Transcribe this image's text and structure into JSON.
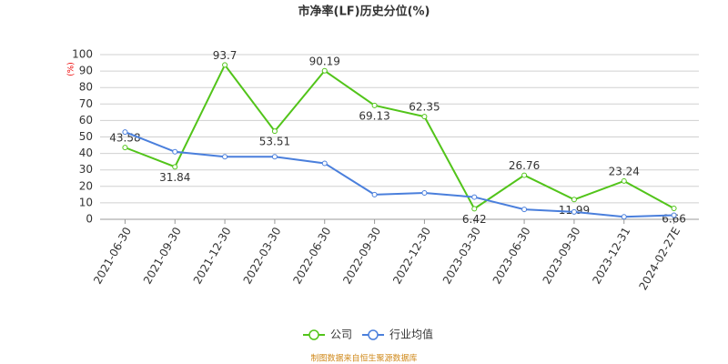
{
  "chart_data": {
    "type": "line",
    "title": "市净率(LF)历史分位(%)",
    "y_label": "(%)",
    "categories": [
      "2021-06-30",
      "2021-09-30",
      "2021-12-30",
      "2022-03-30",
      "2022-06-30",
      "2022-09-30",
      "2022-12-30",
      "2023-03-30",
      "2023-06-30",
      "2023-09-30",
      "2023-12-31",
      "2024-02-27E"
    ],
    "series": [
      {
        "name": "公司",
        "color": "#52c41a",
        "values": [
          43.58,
          31.84,
          93.7,
          53.51,
          90.19,
          69.13,
          62.35,
          6.42,
          26.76,
          11.99,
          23.24,
          6.66
        ],
        "show_labels": true
      },
      {
        "name": "行业均值",
        "color": "#4a7fdc",
        "values": [
          53,
          41,
          38,
          38,
          34,
          15,
          16,
          13.5,
          6,
          4.5,
          1.5,
          2.5
        ],
        "show_labels": false
      }
    ],
    "ylim": [
      0,
      100
    ],
    "yticks": [
      0,
      10,
      20,
      30,
      40,
      50,
      60,
      70,
      80,
      90,
      100
    ],
    "grid": true,
    "source": "制图数据来自恒生聚源数据库"
  }
}
